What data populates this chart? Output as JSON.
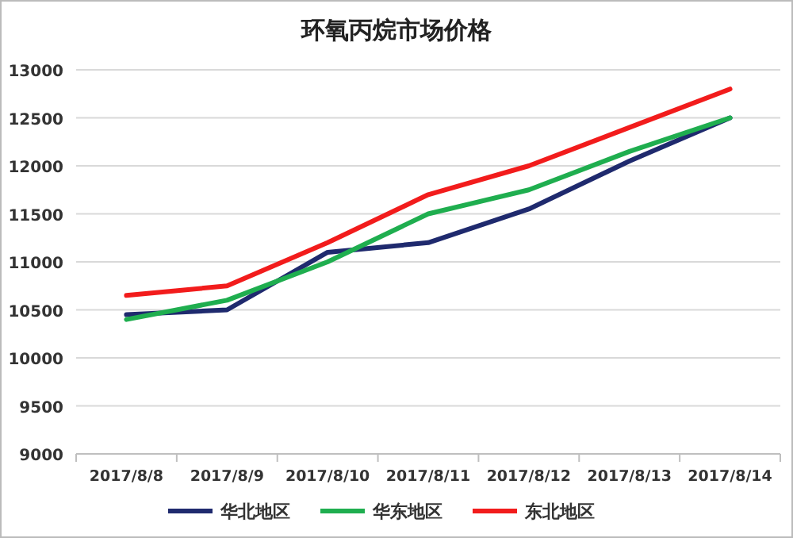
{
  "chart_data": {
    "type": "line",
    "title": "环氧丙烷市场价格",
    "categories": [
      "2017/8/8",
      "2017/8/9",
      "2017/8/10",
      "2017/8/11",
      "2017/8/12",
      "2017/8/13",
      "2017/8/14"
    ],
    "series": [
      {
        "name": "华北地区",
        "color": "#1f2a6e",
        "values": [
          10450,
          10500,
          11100,
          11200,
          11550,
          12050,
          12500
        ]
      },
      {
        "name": "华东地区",
        "color": "#1fae4f",
        "values": [
          10400,
          10600,
          11000,
          11500,
          11750,
          12150,
          12500
        ]
      },
      {
        "name": "东北地区",
        "color": "#f21c1c",
        "values": [
          10650,
          10750,
          11200,
          11700,
          12000,
          12400,
          12800
        ]
      }
    ],
    "ylim": [
      9000,
      13000
    ],
    "yticks": [
      9000,
      9500,
      10000,
      10500,
      11000,
      11500,
      12000,
      12500,
      13000
    ],
    "grid": "y",
    "legend": "bottom",
    "marker": "none",
    "line_style": "solid"
  }
}
